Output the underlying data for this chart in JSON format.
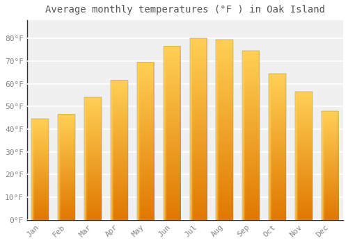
{
  "title": "Average monthly temperatures (°F ) in Oak Island",
  "months": [
    "Jan",
    "Feb",
    "Mar",
    "Apr",
    "May",
    "Jun",
    "Jul",
    "Aug",
    "Sep",
    "Oct",
    "Nov",
    "Dec"
  ],
  "values": [
    44.5,
    46.5,
    54.0,
    61.5,
    69.5,
    76.5,
    80.0,
    79.5,
    74.5,
    64.5,
    56.5,
    48.0
  ],
  "bar_color_top": "#FFD055",
  "bar_color_bottom": "#E07800",
  "bar_color_left": "#FFDD66",
  "ylim": [
    0,
    88
  ],
  "yticks": [
    0,
    10,
    20,
    30,
    40,
    50,
    60,
    70,
    80
  ],
  "ytick_labels": [
    "0°F",
    "10°F",
    "20°F",
    "30°F",
    "40°F",
    "50°F",
    "60°F",
    "70°F",
    "80°F"
  ],
  "background_color": "#ffffff",
  "plot_bg_color": "#f0f0f0",
  "grid_color": "#ffffff",
  "title_fontsize": 10,
  "tick_fontsize": 8,
  "title_color": "#555555",
  "tick_color": "#888888"
}
